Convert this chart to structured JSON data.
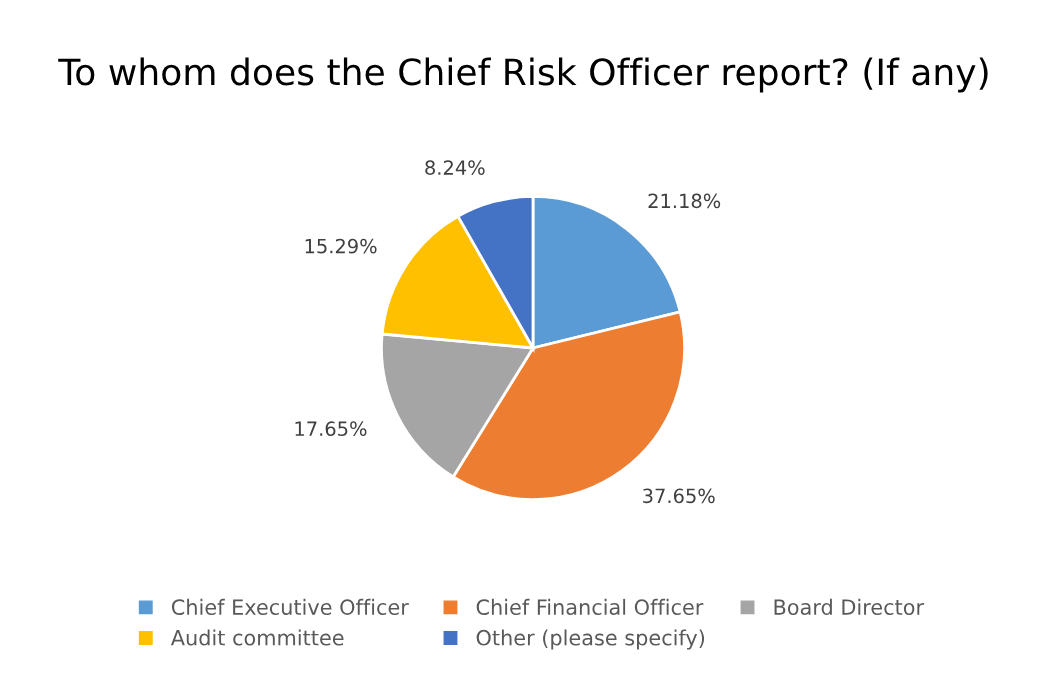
{
  "chart_data": {
    "type": "pie",
    "title": "To whom does the Chief Risk Officer report? (If any)",
    "categories": [
      "Chief Executive Officer",
      "Chief Financial Officer",
      "Board Director",
      "Audit committee",
      "Other (please specify)"
    ],
    "values": [
      21.18,
      37.65,
      17.65,
      15.29,
      8.24
    ],
    "colors": [
      "#5b9bd5",
      "#ed7d31",
      "#a5a5a5",
      "#ffc000",
      "#4472c4"
    ],
    "value_labels": [
      "21.18%",
      "37.65%",
      "17.65%",
      "15.29%",
      "8.24%"
    ],
    "legend": "bottom"
  }
}
